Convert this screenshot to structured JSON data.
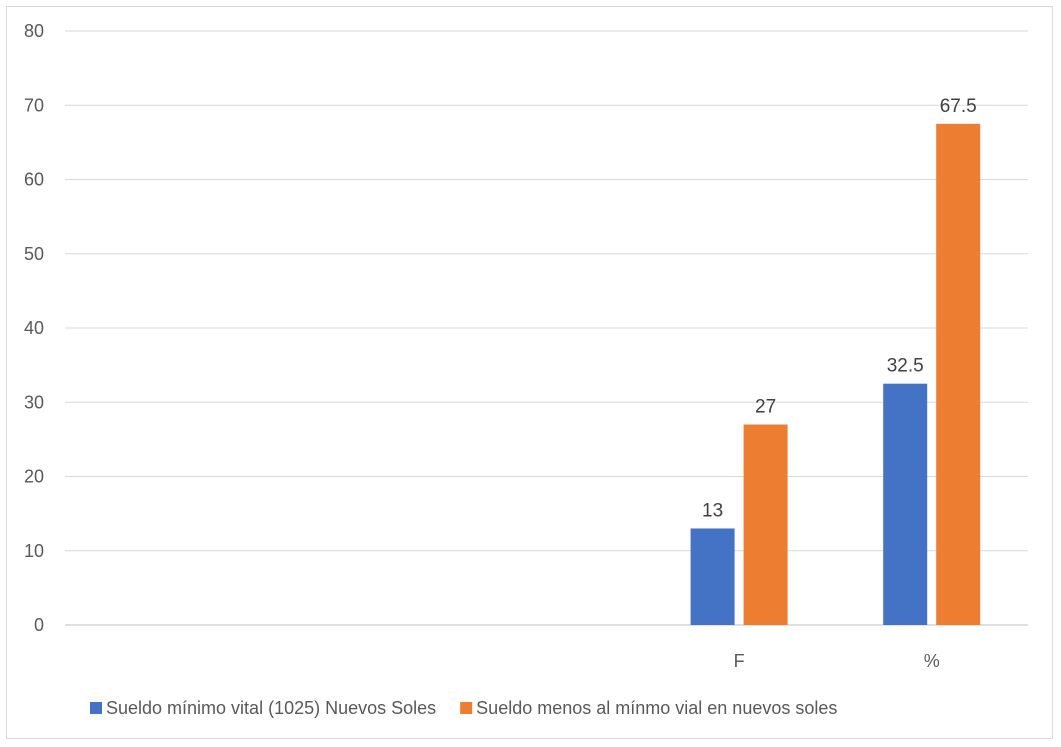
{
  "chart_data": {
    "type": "bar",
    "title": "",
    "xlabel": "",
    "ylabel": "",
    "ylim": [
      0,
      80
    ],
    "y_ticks": [
      0,
      10,
      20,
      30,
      40,
      50,
      60,
      70,
      80
    ],
    "grid": true,
    "legend_position": "bottom",
    "categories": [
      "",
      "",
      "",
      "F",
      "%"
    ],
    "series": [
      {
        "name": "Sueldo mínimo vital (1025) Nuevos Soles",
        "color": "#4472c4",
        "values": [
          null,
          null,
          null,
          13,
          32.5
        ]
      },
      {
        "name": "Sueldo menos al mínmo vial en nuevos soles",
        "color": "#ed7d31",
        "values": [
          null,
          null,
          null,
          27,
          67.5
        ]
      }
    ]
  }
}
